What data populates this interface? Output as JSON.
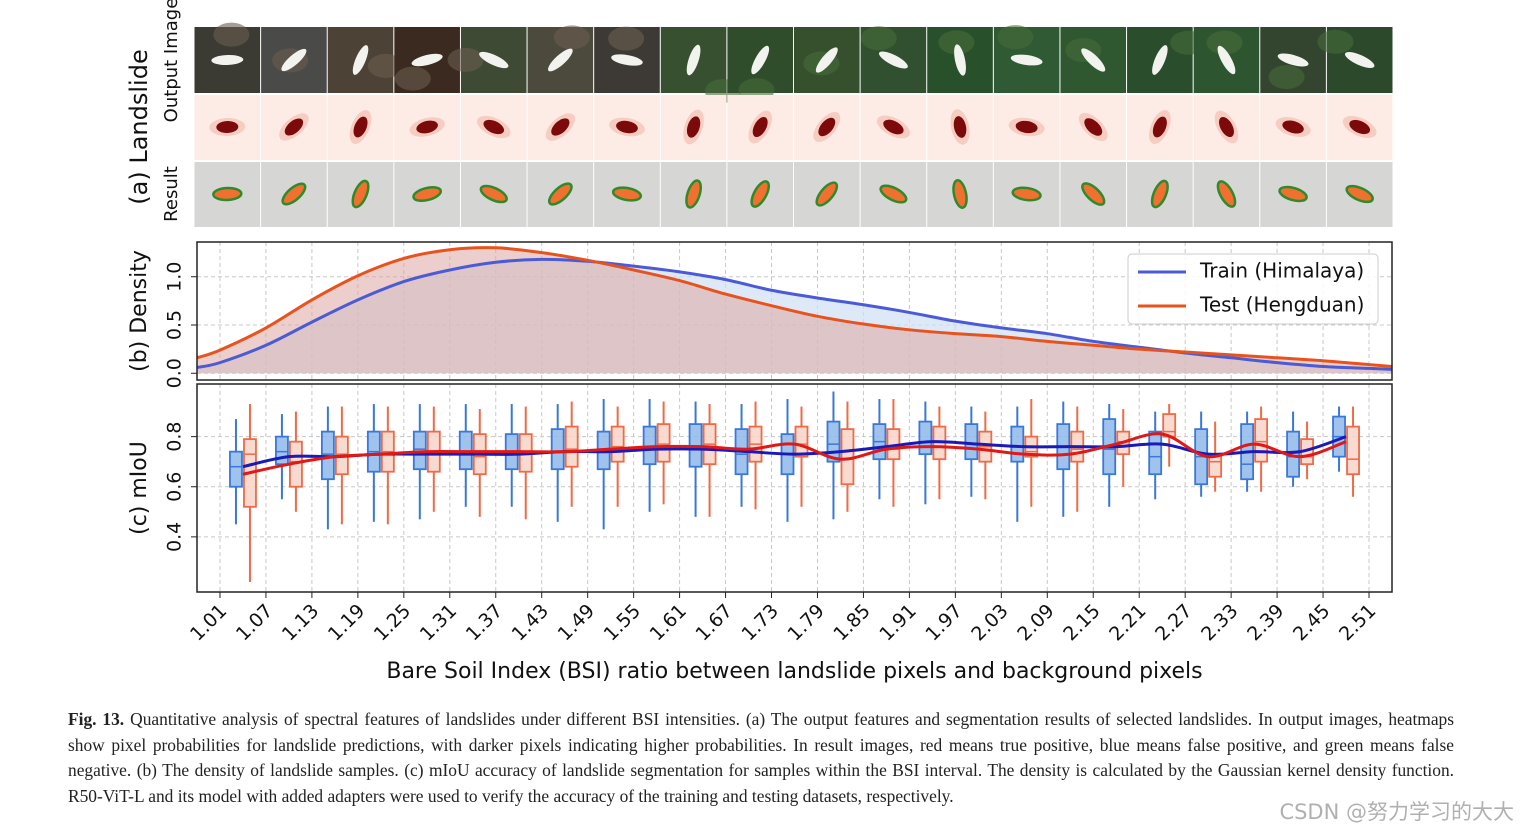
{
  "panel_a": {
    "label": "(a) Landslide",
    "row_labels": [
      "Output Image",
      "Result"
    ]
  },
  "chart_data": [
    {
      "type": "area",
      "ylabel": "(b) Density",
      "x": [
        0.98,
        1.01,
        1.07,
        1.13,
        1.19,
        1.25,
        1.31,
        1.37,
        1.43,
        1.49,
        1.55,
        1.61,
        1.67,
        1.73,
        1.79,
        1.85,
        1.91,
        1.97,
        2.03,
        2.09,
        2.15,
        2.21,
        2.27,
        2.33,
        2.39,
        2.45,
        2.51,
        2.54
      ],
      "xlim": [
        0.98,
        2.54
      ],
      "ylim": [
        -0.07,
        1.36
      ],
      "yticks": [
        {
          "value": 0,
          "label": "0.0"
        },
        {
          "value": 0.5,
          "label": "0.5"
        },
        {
          "value": 1,
          "label": "1.0"
        }
      ],
      "grid": true,
      "legend": "upper right",
      "series": [
        {
          "name": "Train (Himalaya)",
          "color": "#4b5bd6",
          "fill": "#cfe0f3",
          "values": [
            0.06,
            0.11,
            0.29,
            0.53,
            0.76,
            0.95,
            1.07,
            1.15,
            1.18,
            1.16,
            1.11,
            1.05,
            0.97,
            0.86,
            0.78,
            0.71,
            0.63,
            0.54,
            0.47,
            0.41,
            0.33,
            0.27,
            0.21,
            0.16,
            0.11,
            0.07,
            0.05,
            0.04
          ]
        },
        {
          "name": "Test (Hengduan)",
          "color": "#e8531d",
          "fill": "#dca7a3",
          "values": [
            0.16,
            0.24,
            0.47,
            0.76,
            1.01,
            1.19,
            1.28,
            1.3,
            1.25,
            1.17,
            1.07,
            0.96,
            0.82,
            0.7,
            0.59,
            0.51,
            0.45,
            0.41,
            0.38,
            0.33,
            0.29,
            0.25,
            0.22,
            0.19,
            0.16,
            0.13,
            0.09,
            0.07
          ]
        }
      ]
    },
    {
      "type": "box",
      "ylabel": "(c) mIoU",
      "xlabel": "Bare Soil Index (BSI) ratio between landslide pixels and background pixels",
      "x": [
        1.04,
        1.1,
        1.16,
        1.22,
        1.28,
        1.34,
        1.4,
        1.46,
        1.52,
        1.58,
        1.64,
        1.7,
        1.76,
        1.82,
        1.88,
        1.94,
        2.0,
        2.06,
        2.12,
        2.18,
        2.24,
        2.3,
        2.36,
        2.42,
        2.48
      ],
      "xlim": [
        0.98,
        2.54
      ],
      "ylim": [
        0.18,
        1.01
      ],
      "xticks": [
        1.01,
        1.07,
        1.13,
        1.19,
        1.25,
        1.31,
        1.37,
        1.43,
        1.49,
        1.55,
        1.61,
        1.67,
        1.73,
        1.79,
        1.85,
        1.91,
        1.97,
        2.03,
        2.09,
        2.15,
        2.21,
        2.27,
        2.33,
        2.39,
        2.45,
        2.51
      ],
      "yticks": [
        0.4,
        0.6,
        0.8
      ],
      "grid": true,
      "series": [
        {
          "color": "#3a78d8",
          "fill": "#8fb8ea",
          "line_color": "#1a1ab8",
          "boxes": [
            [
              0.45,
              0.6,
              0.68,
              0.74,
              0.87
            ],
            [
              0.55,
              0.69,
              0.74,
              0.8,
              0.89
            ],
            [
              0.43,
              0.63,
              0.73,
              0.82,
              0.92
            ],
            [
              0.46,
              0.66,
              0.74,
              0.82,
              0.93
            ],
            [
              0.47,
              0.67,
              0.75,
              0.82,
              0.93
            ],
            [
              0.52,
              0.67,
              0.74,
              0.82,
              0.93
            ],
            [
              0.52,
              0.67,
              0.73,
              0.81,
              0.93
            ],
            [
              0.46,
              0.67,
              0.74,
              0.83,
              0.93
            ],
            [
              0.43,
              0.67,
              0.75,
              0.82,
              0.95
            ],
            [
              0.5,
              0.69,
              0.76,
              0.84,
              0.95
            ],
            [
              0.48,
              0.68,
              0.76,
              0.85,
              0.94
            ],
            [
              0.52,
              0.65,
              0.73,
              0.83,
              0.93
            ],
            [
              0.46,
              0.65,
              0.73,
              0.81,
              0.95
            ],
            [
              0.47,
              0.7,
              0.77,
              0.86,
              0.98
            ],
            [
              0.55,
              0.71,
              0.78,
              0.85,
              0.95
            ],
            [
              0.53,
              0.73,
              0.78,
              0.86,
              0.94
            ],
            [
              0.56,
              0.71,
              0.77,
              0.85,
              0.92
            ],
            [
              0.46,
              0.7,
              0.76,
              0.84,
              0.92
            ],
            [
              0.48,
              0.67,
              0.76,
              0.85,
              0.94
            ],
            [
              0.52,
              0.65,
              0.75,
              0.87,
              0.93
            ],
            [
              0.55,
              0.65,
              0.72,
              0.82,
              0.9
            ],
            [
              0.56,
              0.61,
              0.72,
              0.83,
              0.9
            ],
            [
              0.58,
              0.63,
              0.69,
              0.85,
              0.9
            ],
            [
              0.6,
              0.64,
              0.72,
              0.82,
              0.9
            ],
            [
              0.66,
              0.72,
              0.8,
              0.88,
              0.92
            ]
          ],
          "mean": [
            0.68,
            0.72,
            0.72,
            0.73,
            0.73,
            0.73,
            0.73,
            0.74,
            0.74,
            0.75,
            0.75,
            0.74,
            0.73,
            0.74,
            0.76,
            0.78,
            0.77,
            0.76,
            0.76,
            0.76,
            0.77,
            0.73,
            0.74,
            0.74,
            0.8
          ]
        },
        {
          "color": "#ef6a45",
          "fill": "#f8d3c8",
          "line_color": "#e01818",
          "boxes": [
            [
              0.22,
              0.52,
              0.73,
              0.79,
              0.93
            ],
            [
              0.5,
              0.6,
              0.7,
              0.78,
              0.9
            ],
            [
              0.45,
              0.65,
              0.73,
              0.8,
              0.92
            ],
            [
              0.45,
              0.66,
              0.74,
              0.82,
              0.92
            ],
            [
              0.5,
              0.66,
              0.74,
              0.82,
              0.92
            ],
            [
              0.48,
              0.65,
              0.72,
              0.81,
              0.91
            ],
            [
              0.47,
              0.66,
              0.73,
              0.81,
              0.92
            ],
            [
              0.52,
              0.68,
              0.75,
              0.84,
              0.94
            ],
            [
              0.52,
              0.7,
              0.76,
              0.84,
              0.92
            ],
            [
              0.53,
              0.7,
              0.77,
              0.85,
              0.94
            ],
            [
              0.48,
              0.69,
              0.77,
              0.85,
              0.93
            ],
            [
              0.51,
              0.7,
              0.77,
              0.84,
              0.94
            ],
            [
              0.52,
              0.72,
              0.77,
              0.84,
              0.92
            ],
            [
              0.5,
              0.61,
              0.71,
              0.83,
              0.94
            ],
            [
              0.52,
              0.71,
              0.75,
              0.83,
              0.95
            ],
            [
              0.55,
              0.71,
              0.76,
              0.84,
              0.92
            ],
            [
              0.55,
              0.7,
              0.76,
              0.82,
              0.9
            ],
            [
              0.52,
              0.72,
              0.74,
              0.8,
              0.95
            ],
            [
              0.5,
              0.7,
              0.75,
              0.82,
              0.92
            ],
            [
              0.6,
              0.73,
              0.78,
              0.82,
              0.91
            ],
            [
              0.68,
              0.8,
              0.82,
              0.89,
              0.93
            ],
            [
              0.58,
              0.64,
              0.7,
              0.73,
              0.86
            ],
            [
              0.58,
              0.7,
              0.78,
              0.87,
              0.92
            ],
            [
              0.63,
              0.69,
              0.72,
              0.79,
              0.86
            ],
            [
              0.56,
              0.65,
              0.71,
              0.84,
              0.92
            ]
          ],
          "mean": [
            0.65,
            0.69,
            0.72,
            0.73,
            0.74,
            0.74,
            0.74,
            0.74,
            0.75,
            0.76,
            0.76,
            0.75,
            0.77,
            0.71,
            0.75,
            0.76,
            0.75,
            0.73,
            0.73,
            0.77,
            0.81,
            0.72,
            0.77,
            0.72,
            0.78
          ]
        }
      ]
    }
  ],
  "caption": {
    "label": "Fig. 13.",
    "text": "Quantitative analysis of spectral features of landslides under different BSI intensities. (a) The output features and segmentation results of selected landslides. In output images, heatmaps show pixel probabilities for landslide predictions, with darker pixels indicating higher probabilities. In result images, red means true positive, blue means false positive, and green means false negative. (b) The density of landslide samples. (c) mIoU accuracy of landslide segmentation for samples within the BSI interval. The density is calculated by the Gaussian kernel density function. R50-ViT-L and its model with added adapters were used to verify the accuracy of the training and testing datasets, respectively."
  },
  "watermark": "CSDN @努力学习的大大"
}
